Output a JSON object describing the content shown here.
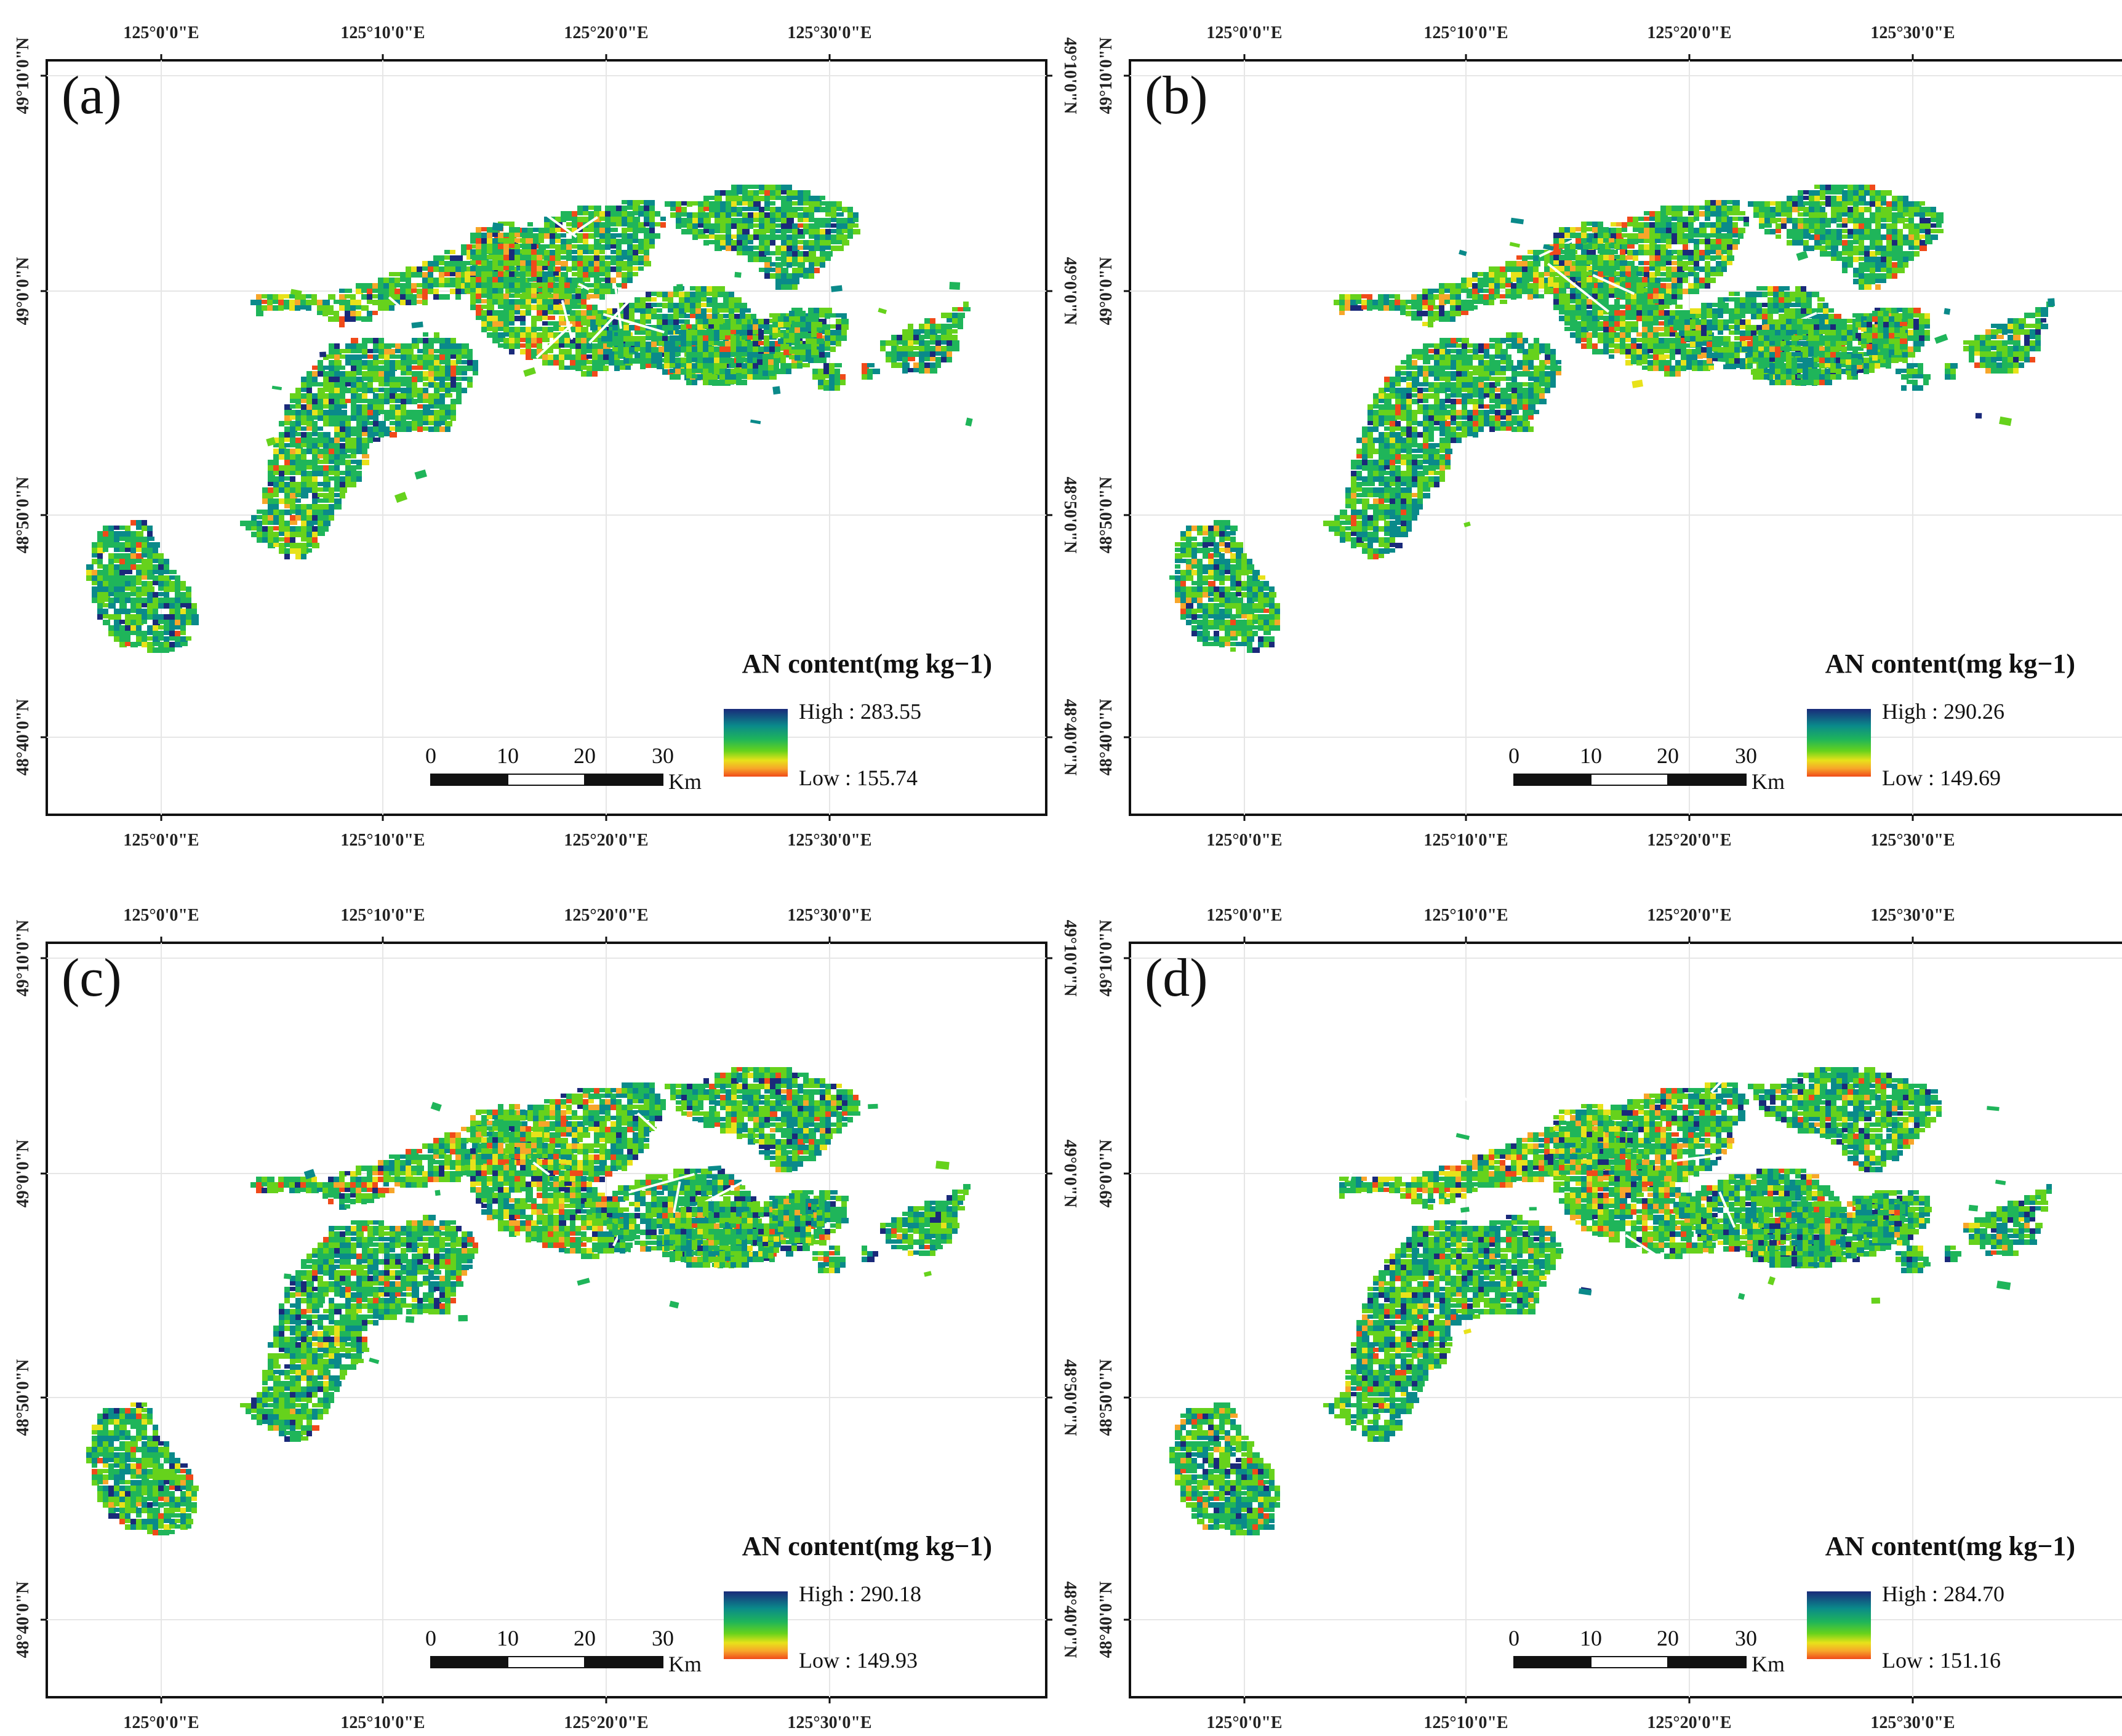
{
  "colors": {
    "ramp": [
      "#1a2a7a",
      "#0a8a8a",
      "#1fb55a",
      "#66d21c",
      "#e8e21a",
      "#f7a62a",
      "#f04a1a"
    ],
    "frame": "#111111",
    "grid": "#e6e6e6"
  },
  "axes": {
    "lon_ticks": [
      "125°0'0\"E",
      "125°10'0\"E",
      "125°20'0\"E",
      "125°30'0\"E"
    ],
    "lat_ticks": [
      "49°10'0\"N",
      "49°0'0\"N",
      "48°50'0\"N",
      "48°40'0\"N"
    ]
  },
  "legend_title": "AN content(mg kg−1)",
  "scale_bar": {
    "labels": [
      "0",
      "10",
      "20",
      "30"
    ],
    "unit": "Km"
  },
  "panels": [
    {
      "label": "(a)",
      "high": "High : 283.55",
      "low": "Low : 155.74",
      "seed": 11
    },
    {
      "label": "(b)",
      "high": "High : 290.26",
      "low": "Low : 149.69",
      "seed": 23
    },
    {
      "label": "(c)",
      "high": "High : 290.18",
      "low": "Low : 149.93",
      "seed": 37
    },
    {
      "label": "(d)",
      "high": "High : 284.70",
      "low": "Low : 151.16",
      "seed": 51
    }
  ]
}
